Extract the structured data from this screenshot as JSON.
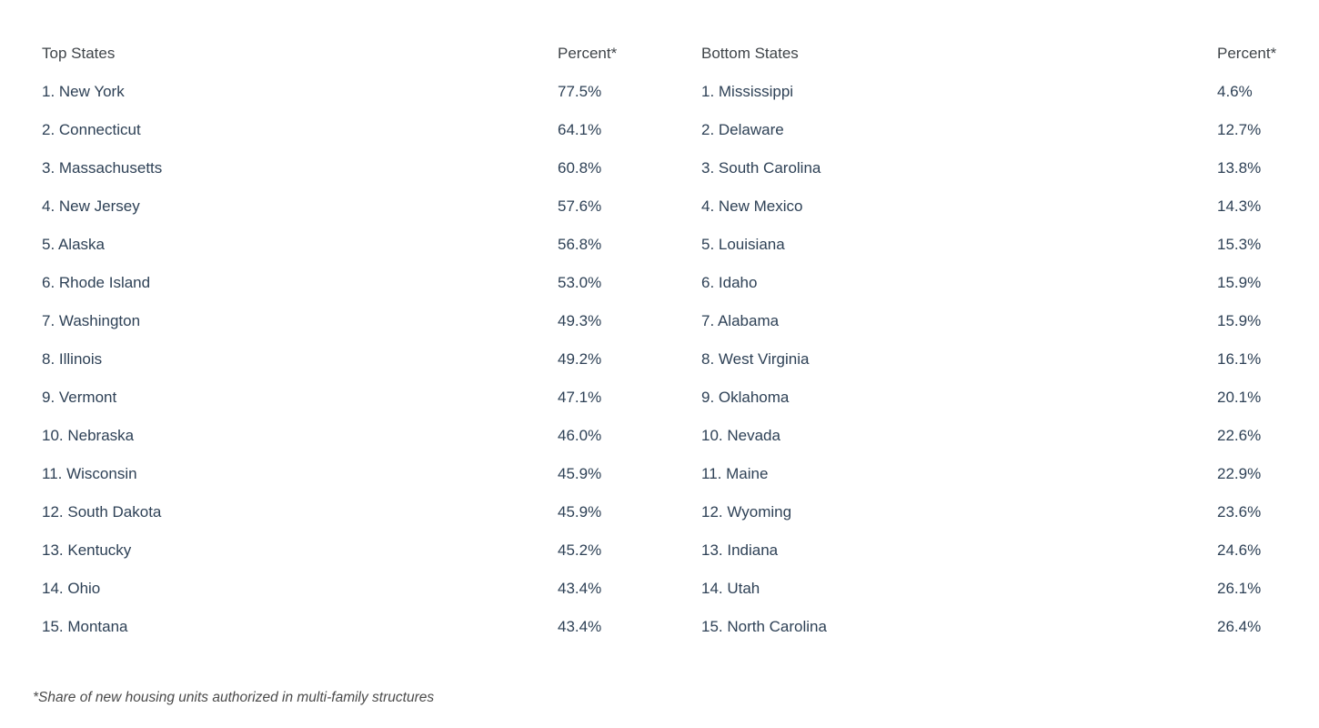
{
  "colors": {
    "background": "#ffffff",
    "body_text": "#2e4156",
    "header_text": "#3f4449",
    "footnote_text": "#4a4a4a"
  },
  "chart_data": {
    "type": "table",
    "columns": [
      "Top States",
      "Percent*",
      "Bottom States",
      "Percent*"
    ],
    "top_states": [
      {
        "label": "1. New York",
        "percent": "77.5%"
      },
      {
        "label": "2. Connecticut",
        "percent": "64.1%"
      },
      {
        "label": "3. Massachusetts",
        "percent": "60.8%"
      },
      {
        "label": "4. New Jersey",
        "percent": "57.6%"
      },
      {
        "label": "5. Alaska",
        "percent": "56.8%"
      },
      {
        "label": "6. Rhode Island",
        "percent": "53.0%"
      },
      {
        "label": "7. Washington",
        "percent": "49.3%"
      },
      {
        "label": "8. Illinois",
        "percent": "49.2%"
      },
      {
        "label": "9. Vermont",
        "percent": "47.1%"
      },
      {
        "label": "10. Nebraska",
        "percent": "46.0%"
      },
      {
        "label": "11. Wisconsin",
        "percent": "45.9%"
      },
      {
        "label": "12. South Dakota",
        "percent": "45.9%"
      },
      {
        "label": "13. Kentucky",
        "percent": "45.2%"
      },
      {
        "label": "14. Ohio",
        "percent": "43.4%"
      },
      {
        "label": "15. Montana",
        "percent": "43.4%"
      }
    ],
    "bottom_states": [
      {
        "label": "1. Mississippi",
        "percent": "4.6%"
      },
      {
        "label": "2. Delaware",
        "percent": "12.7%"
      },
      {
        "label": "3. South Carolina",
        "percent": "13.8%"
      },
      {
        "label": "4. New Mexico",
        "percent": "14.3%"
      },
      {
        "label": "5. Louisiana",
        "percent": "15.3%"
      },
      {
        "label": "6. Idaho",
        "percent": "15.9%"
      },
      {
        "label": "7. Alabama",
        "percent": "15.9%"
      },
      {
        "label": "8. West Virginia",
        "percent": "16.1%"
      },
      {
        "label": "9. Oklahoma",
        "percent": "20.1%"
      },
      {
        "label": "10. Nevada",
        "percent": "22.6%"
      },
      {
        "label": "11. Maine",
        "percent": "22.9%"
      },
      {
        "label": "12. Wyoming",
        "percent": "23.6%"
      },
      {
        "label": "13. Indiana",
        "percent": "24.6%"
      },
      {
        "label": "14. Utah",
        "percent": "26.1%"
      },
      {
        "label": "15. North Carolina",
        "percent": "26.4%"
      }
    ],
    "footnote": "*Share of new housing units authorized in multi-family structures"
  }
}
